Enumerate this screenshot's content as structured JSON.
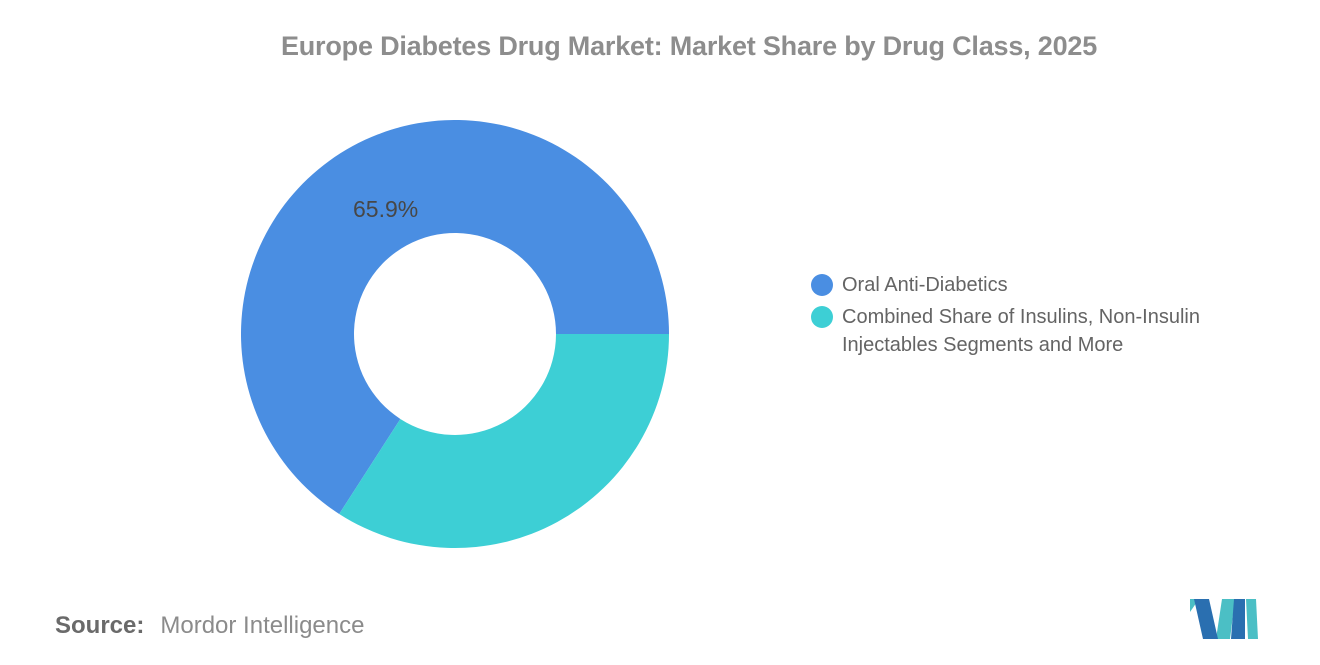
{
  "title": "Europe Diabetes Drug Market: Market Share by Drug Class, 2025",
  "chart_data": {
    "type": "pie",
    "subtype": "donut",
    "title": "Europe Diabetes Drug Market: Market Share by Drug Class, 2025",
    "categories": [
      "Oral Anti-Diabetics",
      "Combined Share of Insulins, Non-Insulin Injectables Segments and More"
    ],
    "values": [
      65.9,
      34.1
    ],
    "colors": [
      "#4A8EE2",
      "#3DCFD5"
    ],
    "data_labels": [
      "65.9%",
      ""
    ],
    "start_angle": "east",
    "direction": "counterclockwise",
    "inner_radius_ratio": 0.47,
    "outer_radius_px": 214,
    "inner_radius_px": 101,
    "legend_position": "right",
    "grid": false
  },
  "legend": {
    "items": [
      {
        "label": "Oral Anti-Diabetics",
        "color": "#4A8EE2"
      },
      {
        "label": "Combined Share of Insulins, Non-Insulin Injectables Segments and More",
        "color": "#3DCFD5"
      }
    ]
  },
  "slice_label": "65.9%",
  "source": {
    "prefix": "Source:",
    "text": "Mordor Intelligence"
  },
  "logo": {
    "name": "mordor-intelligence-logo",
    "teal": "#4BBFC5",
    "blue": "#2A6FB0"
  },
  "colors": {
    "background": "#FFFFFF",
    "title_text": "#8D8D8D",
    "slice_label_text": "#474747",
    "legend_text": "#646464",
    "source_prefix_text": "#6A6A6A",
    "source_text": "#8B8B8B"
  }
}
